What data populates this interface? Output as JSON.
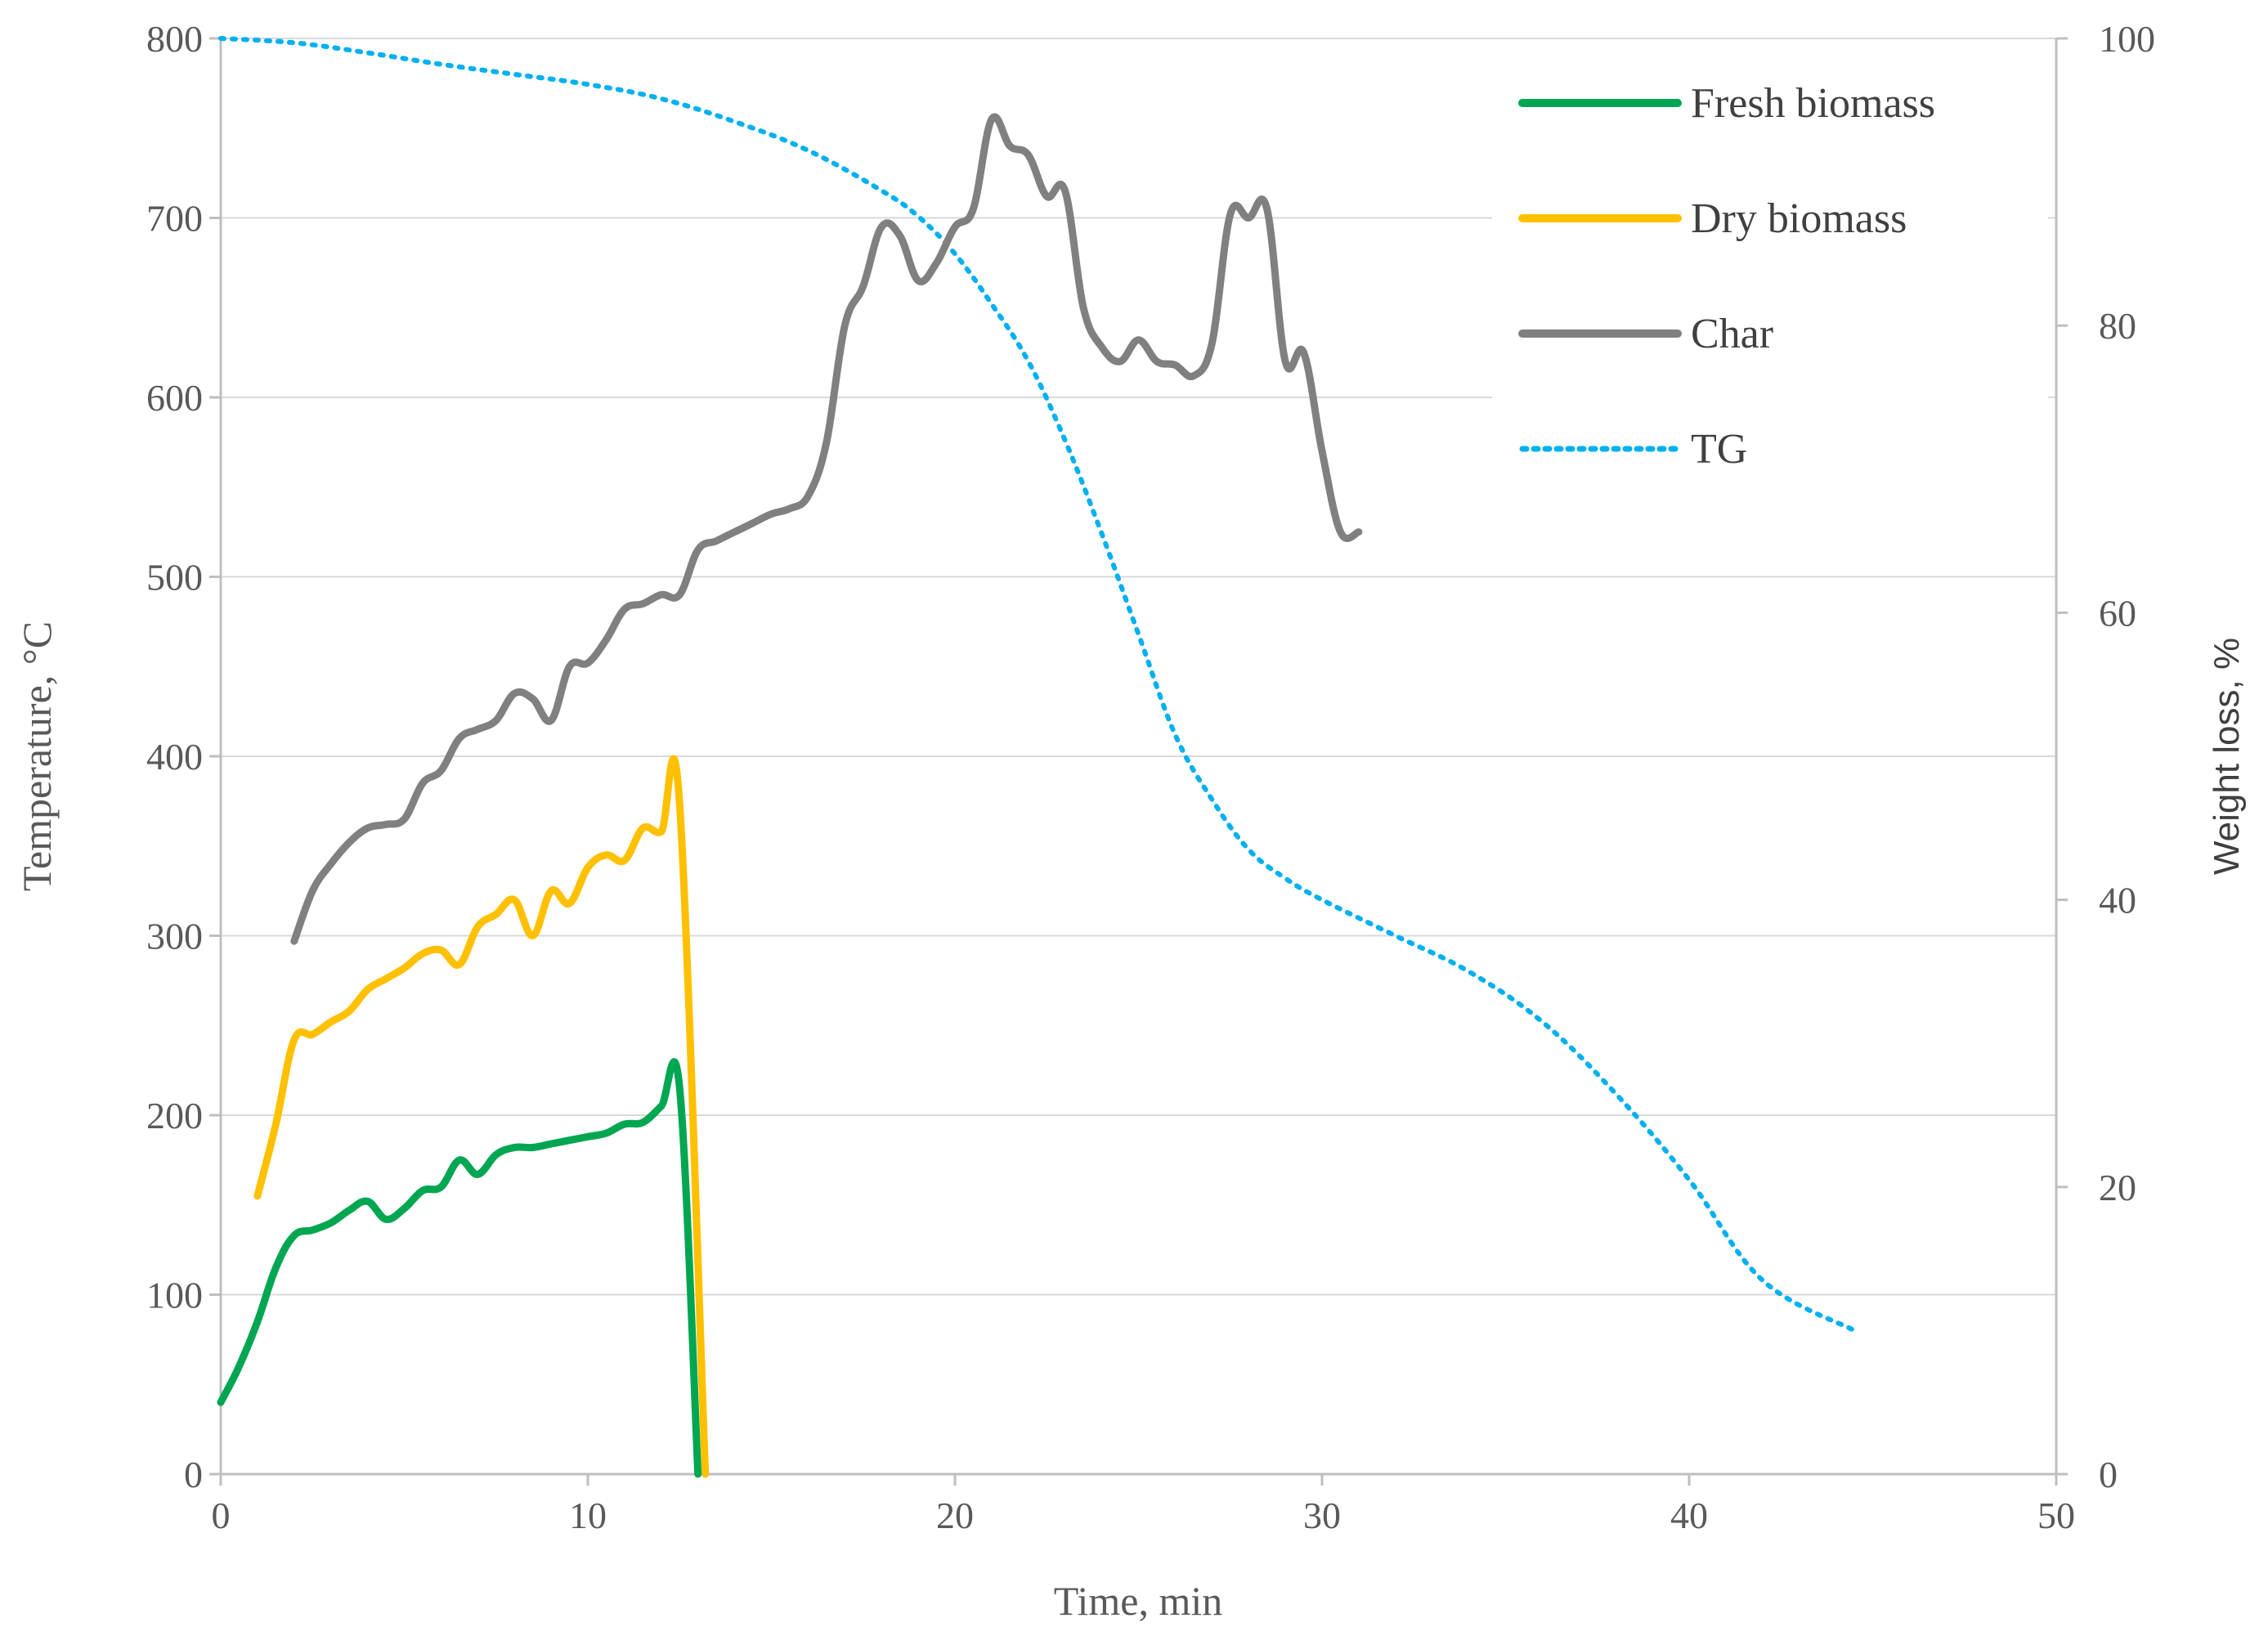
{
  "chart_data": {
    "type": "line",
    "xlabel": "Time, min",
    "ylabel": "Temperature, °C",
    "y2label": "Weight loss, %",
    "xlim": [
      0,
      50
    ],
    "ylim": [
      0,
      800
    ],
    "y2lim": [
      0,
      100
    ],
    "xticks": [
      "0",
      "10",
      "20",
      "30",
      "40",
      "50"
    ],
    "yticks": [
      "0",
      "100",
      "200",
      "300",
      "400",
      "500",
      "600",
      "700",
      "800"
    ],
    "y2ticks": [
      "0",
      "20",
      "40",
      "60",
      "80",
      "100"
    ],
    "grid": "horizontal",
    "legend_position": "top-right",
    "series": [
      {
        "name": "Fresh biomass",
        "color": "#00a651",
        "style": "solid",
        "axis": "left",
        "x": [
          0,
          0.5,
          1,
          1.5,
          2,
          2.5,
          3,
          3.5,
          4,
          4.5,
          5,
          5.5,
          6,
          6.5,
          7,
          7.5,
          8,
          8.5,
          9,
          9.5,
          10,
          10.5,
          11,
          11.5,
          12,
          12.5,
          13
        ],
        "y": [
          40,
          60,
          85,
          115,
          133,
          136,
          140,
          147,
          152,
          142,
          148,
          158,
          160,
          175,
          167,
          178,
          182,
          182,
          184,
          186,
          188,
          190,
          195,
          196,
          205,
          215,
          0
        ]
      },
      {
        "name": "Dry biomass",
        "color": "#ffc000",
        "style": "solid",
        "axis": "left",
        "x": [
          1,
          1.5,
          2,
          2.5,
          3,
          3.5,
          4,
          4.5,
          5,
          5.5,
          6,
          6.5,
          7,
          7.5,
          8,
          8.5,
          9,
          9.5,
          10,
          10.5,
          11,
          11.5,
          12,
          12.5,
          13.2
        ],
        "y": [
          155,
          195,
          242,
          245,
          252,
          258,
          270,
          276,
          282,
          290,
          292,
          284,
          305,
          312,
          320,
          300,
          325,
          318,
          338,
          345,
          342,
          360,
          358,
          373,
          0
        ]
      },
      {
        "name": "Char",
        "color": "#808080",
        "style": "solid",
        "axis": "left",
        "x": [
          2,
          2.5,
          3,
          3.5,
          4,
          4.5,
          5,
          5.5,
          6,
          6.5,
          7,
          7.5,
          8,
          8.5,
          9,
          9.5,
          10,
          10.5,
          11,
          11.5,
          12,
          12.5,
          13,
          13.5,
          14,
          14.5,
          15,
          15.5,
          16,
          16.5,
          17,
          17.5,
          18,
          18.5,
          19,
          19.5,
          20,
          20.5,
          21,
          21.5,
          22,
          22.5,
          23,
          23.5,
          24,
          24.5,
          25,
          25.5,
          26,
          26.5,
          27,
          27.5,
          28,
          28.5,
          29,
          29.5,
          30,
          30.5,
          31
        ],
        "y": [
          297,
          325,
          340,
          352,
          360,
          362,
          365,
          385,
          392,
          410,
          415,
          420,
          435,
          432,
          420,
          450,
          452,
          465,
          482,
          485,
          490,
          490,
          515,
          520,
          525,
          530,
          535,
          538,
          545,
          575,
          640,
          662,
          695,
          690,
          665,
          675,
          695,
          705,
          755,
          740,
          735,
          712,
          715,
          650,
          628,
          620,
          632,
          620,
          618,
          612,
          630,
          702,
          700,
          705,
          620,
          625,
          570,
          525,
          525
        ]
      },
      {
        "name": "TG",
        "color": "#00b0f0",
        "style": "dotted",
        "axis": "right",
        "x": [
          0,
          2,
          4,
          6,
          8,
          10,
          12,
          14,
          16,
          18,
          19,
          20,
          21,
          22,
          23,
          24,
          25,
          26,
          27,
          28,
          29,
          30,
          32,
          34,
          36,
          38,
          40,
          42,
          44.5
        ],
        "y": [
          100,
          99.7,
          99,
          98.2,
          97.5,
          96.8,
          95.8,
          94.2,
          92.2,
          89.4,
          87.6,
          85,
          81.5,
          77.5,
          72,
          65.5,
          58.5,
          51.5,
          47,
          43.5,
          41.5,
          40,
          37.5,
          35,
          31.5,
          26.5,
          20.5,
          13.5,
          10
        ]
      }
    ]
  }
}
